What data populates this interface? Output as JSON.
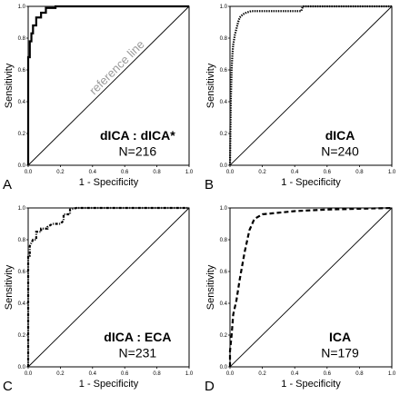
{
  "chart_data": [
    {
      "type": "line",
      "panel": "A",
      "xlabel": "1 - Specificity",
      "ylabel": "Sensitivity",
      "xlim": [
        0,
        1
      ],
      "ylim": [
        0,
        1
      ],
      "xticks": [
        "0.0",
        "0.2",
        "0.4",
        "0.6",
        "0.8",
        "1.0"
      ],
      "yticks": [
        "0.0",
        "0.2",
        "0.4",
        "0.6",
        "0.8",
        "1.0"
      ],
      "annotation_name": "dICA : dICA*",
      "annotation_n": "N=216",
      "reference_label": "reference line",
      "line_style": "solid",
      "series": [
        {
          "x": [
            0,
            0,
            0.01,
            0.01,
            0.02,
            0.02,
            0.03,
            0.03,
            0.05,
            0.05,
            0.08,
            0.08,
            0.11,
            0.11,
            0.17,
            0.17,
            0.55,
            1.0
          ],
          "y": [
            0,
            0.68,
            0.68,
            0.78,
            0.78,
            0.83,
            0.83,
            0.88,
            0.88,
            0.93,
            0.93,
            0.96,
            0.96,
            0.99,
            0.99,
            1.0,
            1.0,
            1.0
          ]
        },
        {
          "x": [
            0,
            1
          ],
          "y": [
            0,
            1
          ]
        }
      ]
    },
    {
      "type": "line",
      "panel": "B",
      "xlabel": "1 - Specificity",
      "ylabel": "Sensitivity",
      "xlim": [
        0,
        1
      ],
      "ylim": [
        0,
        1
      ],
      "xticks": [
        "0.0",
        "0.2",
        "0.4",
        "0.6",
        "0.8",
        "1.0"
      ],
      "yticks": [
        "0.0",
        "0.2",
        "0.4",
        "0.6",
        "0.8",
        "1.0"
      ],
      "annotation_name": "dICA",
      "annotation_n": "N=240",
      "reference_label": "",
      "line_style": "dotted",
      "series": [
        {
          "x": [
            0,
            0.005,
            0.01,
            0.015,
            0.02,
            0.03,
            0.04,
            0.05,
            0.06,
            0.08,
            0.1,
            0.13,
            0.16,
            0.2,
            0.3,
            0.44,
            0.45,
            0.6,
            1.0
          ],
          "y": [
            0,
            0.4,
            0.6,
            0.7,
            0.76,
            0.82,
            0.86,
            0.9,
            0.93,
            0.95,
            0.96,
            0.97,
            0.97,
            0.97,
            0.97,
            0.97,
            1.0,
            1.0,
            1.0
          ]
        },
        {
          "x": [
            0,
            1
          ],
          "y": [
            0,
            1
          ]
        }
      ]
    },
    {
      "type": "line",
      "panel": "C",
      "xlabel": "1 - Specificity",
      "ylabel": "Sensitivity",
      "xlim": [
        0,
        1
      ],
      "ylim": [
        0,
        1
      ],
      "xticks": [
        "0.0",
        "0.2",
        "0.4",
        "0.6",
        "0.8",
        "1.0"
      ],
      "yticks": [
        "0.0",
        "0.2",
        "0.4",
        "0.6",
        "0.8",
        "1.0"
      ],
      "annotation_name": "dICA : ECA",
      "annotation_n": "N=231",
      "reference_label": "",
      "line_style": "dash-dot",
      "series": [
        {
          "x": [
            0,
            0,
            0.01,
            0.01,
            0.02,
            0.03,
            0.05,
            0.05,
            0.08,
            0.08,
            0.12,
            0.12,
            0.15,
            0.2,
            0.22,
            0.22,
            0.26,
            0.26,
            0.3,
            0.6,
            1.0
          ],
          "y": [
            0,
            0.7,
            0.7,
            0.76,
            0.78,
            0.8,
            0.8,
            0.85,
            0.85,
            0.87,
            0.87,
            0.88,
            0.9,
            0.9,
            0.92,
            0.96,
            0.96,
            0.99,
            1.0,
            1.0,
            1.0
          ]
        },
        {
          "x": [
            0,
            1
          ],
          "y": [
            0,
            1
          ]
        }
      ]
    },
    {
      "type": "line",
      "panel": "D",
      "xlabel": "1 - Specificity",
      "ylabel": "Sensitivity",
      "xlim": [
        0,
        1
      ],
      "ylim": [
        0,
        1
      ],
      "xticks": [
        "0.0",
        "0.2",
        "0.4",
        "0.6",
        "0.8",
        "1.0"
      ],
      "yticks": [
        "0.0",
        "0.2",
        "0.4",
        "0.6",
        "0.8",
        "1.0"
      ],
      "annotation_name": "ICA",
      "annotation_n": "N=179",
      "reference_label": "",
      "line_style": "dashed",
      "series": [
        {
          "x": [
            0,
            0,
            0.01,
            0.02,
            0.04,
            0.06,
            0.09,
            0.12,
            0.15,
            0.2,
            0.3,
            0.4,
            0.6,
            0.8,
            1.0
          ],
          "y": [
            0,
            0.1,
            0.2,
            0.33,
            0.42,
            0.55,
            0.72,
            0.86,
            0.93,
            0.96,
            0.97,
            0.98,
            0.99,
            0.995,
            1.0
          ]
        },
        {
          "x": [
            0,
            1
          ],
          "y": [
            0,
            1
          ]
        }
      ]
    }
  ]
}
